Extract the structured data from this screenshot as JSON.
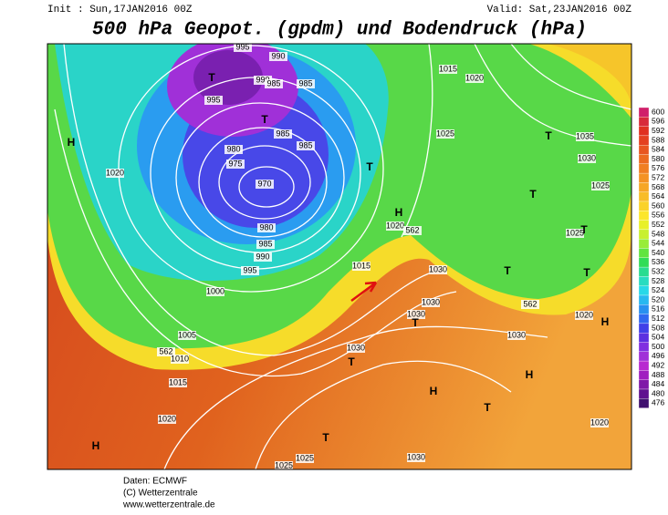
{
  "header": {
    "init": "Init : Sun,17JAN2016 00Z",
    "valid": "Valid: Sat,23JAN2016 00Z",
    "title": "500 hPa Geopot. (gpdm) und Bodendruck (hPa)"
  },
  "footer": [
    "Daten: ECMWF",
    "(C) Wetterzentrale",
    "www.wetterzentrale.de"
  ],
  "colorbar": {
    "labels": [
      600,
      596,
      592,
      588,
      584,
      580,
      576,
      572,
      568,
      564,
      560,
      556,
      552,
      548,
      544,
      540,
      536,
      532,
      528,
      524,
      520,
      516,
      512,
      508,
      504,
      500,
      496,
      492,
      488,
      484,
      480,
      476
    ],
    "colors": [
      "#d0206a",
      "#d82a3a",
      "#e03020",
      "#e44020",
      "#e85520",
      "#ec6a20",
      "#f07e22",
      "#f49224",
      "#f6a626",
      "#f8bc28",
      "#fad22a",
      "#fce62c",
      "#e8f028",
      "#c8f030",
      "#98ec38",
      "#60e440",
      "#30dc58",
      "#28dc90",
      "#28dcc0",
      "#28d8e8",
      "#28b8f0",
      "#2890f0",
      "#3068f0",
      "#4040e8",
      "#5c30e0",
      "#8030e0",
      "#a030d8",
      "#b828d0",
      "#a020c0",
      "#8018a8",
      "#601090",
      "#401070"
    ]
  },
  "map_labels": [
    "T",
    "995",
    "990",
    "990",
    "985",
    "995",
    "985",
    "T",
    "985",
    "985",
    "980",
    "975",
    "970",
    "980",
    "985",
    "990",
    "995",
    "1000",
    "1005",
    "562",
    "1010",
    "1015",
    "1020",
    "H",
    "H",
    "1020",
    "1015",
    "1020",
    "H",
    "562",
    "1030",
    "T",
    "1015",
    "1020",
    "1025",
    "1035",
    "T",
    "1030",
    "1025",
    "T",
    "1025",
    "T",
    "T",
    "562",
    "1020",
    "T",
    "H",
    "1030",
    "1030",
    "T",
    "1030",
    "1030",
    "T",
    "H",
    "H",
    "T",
    "1020",
    "1030",
    "1025",
    "1025",
    "T"
  ]
}
